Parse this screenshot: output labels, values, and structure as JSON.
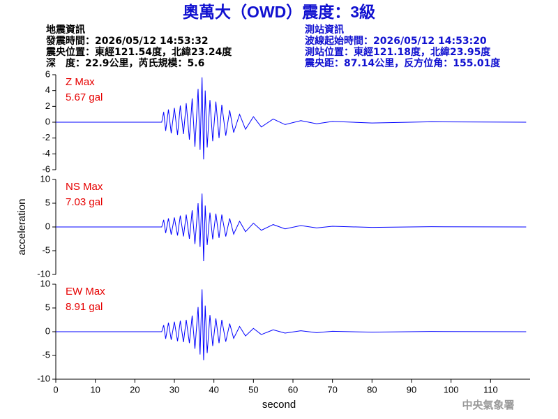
{
  "header": {
    "title": "奧萬大（OWD）震度：3級",
    "left": [
      "地震資訊",
      "發震時間：2026/05/12 14:53:32",
      "震央位置：東經121.54度，北緯23.24度",
      "深　度：22.9公里，芮氏規模：5.6"
    ],
    "right": [
      "測站資訊",
      "波線起始時間：2026/05/12 14:53:20",
      "測站位置：東經121.18度，北緯23.95度",
      "震央距：87.14公里，反方位角：155.01度"
    ]
  },
  "footer": "中央氣象署",
  "chart_data": [
    {
      "type": "line",
      "annotation": [
        "Z Max",
        "5.67 gal"
      ],
      "annotation_color": "#e60000",
      "series": [
        {
          "color": "#0000ff",
          "x": [
            0,
            26.8,
            27.3,
            27.8,
            28.5,
            29.2,
            30,
            30.8,
            31.5,
            32.3,
            33,
            33.8,
            34.5,
            35.2,
            36,
            36.5,
            37,
            37.4,
            37.8,
            38.3,
            39,
            39.7,
            40.5,
            41.3,
            42,
            43,
            44,
            45,
            46.5,
            48,
            50,
            52,
            55,
            58,
            62,
            66,
            70,
            80,
            95,
            119
          ],
          "values": [
            0,
            0,
            1.3,
            -1.1,
            1.6,
            -1.4,
            1.8,
            -1.6,
            2.1,
            -1.5,
            2.4,
            -2.2,
            3.0,
            -3.1,
            4.2,
            -3.5,
            5.67,
            -4.7,
            4.0,
            -3.2,
            2.8,
            -2.4,
            2.6,
            -2.0,
            2.2,
            -1.7,
            1.5,
            -1.3,
            1.0,
            -0.9,
            0.7,
            -0.6,
            0.4,
            -0.3,
            0.2,
            -0.2,
            0.1,
            -0.1,
            0.05,
            0
          ]
        }
      ],
      "xlim": [
        0,
        120
      ],
      "ylim": [
        -6,
        6
      ],
      "yticks": [
        -6,
        -4,
        -2,
        0,
        2,
        4,
        6
      ]
    },
    {
      "type": "line",
      "annotation": [
        "NS Max",
        "7.03 gal"
      ],
      "annotation_color": "#e60000",
      "ylabel": "acceleration",
      "series": [
        {
          "color": "#0000ff",
          "x": [
            0,
            26.8,
            27.3,
            27.8,
            28.5,
            29.2,
            30,
            30.8,
            31.5,
            32.3,
            33,
            33.8,
            34.5,
            35.2,
            36,
            36.5,
            37,
            37.4,
            37.8,
            38.3,
            39,
            39.7,
            40.5,
            41.3,
            42,
            43,
            44,
            45,
            46.5,
            48,
            50,
            52,
            55,
            58,
            62,
            66,
            70,
            80,
            95,
            119
          ],
          "values": [
            0,
            0,
            1.5,
            -1.3,
            1.8,
            -1.6,
            2.0,
            -1.8,
            2.4,
            -2.0,
            2.6,
            -2.5,
            3.5,
            -3.6,
            5.0,
            -4.2,
            7.03,
            -7.2,
            4.5,
            -3.8,
            3.0,
            -2.6,
            2.8,
            -2.3,
            2.6,
            -2.0,
            1.8,
            -1.5,
            1.2,
            -1.0,
            0.8,
            -0.7,
            0.5,
            -0.4,
            0.3,
            -0.2,
            0.15,
            -0.1,
            0.05,
            0
          ]
        }
      ],
      "xlim": [
        0,
        120
      ],
      "ylim": [
        -10,
        10
      ],
      "yticks": [
        -10,
        -5,
        0,
        5,
        10
      ]
    },
    {
      "type": "line",
      "annotation": [
        "EW Max",
        "8.91 gal"
      ],
      "annotation_color": "#e60000",
      "xlabel": "second",
      "series": [
        {
          "color": "#0000ff",
          "x": [
            0,
            26.8,
            27.3,
            27.8,
            28.5,
            29.2,
            30,
            30.8,
            31.5,
            32.3,
            33,
            33.8,
            34.5,
            35.2,
            36,
            36.5,
            37,
            37.4,
            37.8,
            38.3,
            39,
            39.7,
            40.5,
            41.3,
            42,
            43,
            44,
            45,
            46.5,
            48,
            50,
            52,
            55,
            58,
            62,
            66,
            70,
            80,
            95,
            119
          ],
          "values": [
            0,
            0,
            1.4,
            -1.5,
            1.9,
            -1.7,
            2.1,
            -2.0,
            2.3,
            -2.2,
            2.5,
            -2.4,
            3.4,
            -3.6,
            5.2,
            -4.8,
            8.91,
            -6.0,
            5.5,
            -4.5,
            3.5,
            -3.0,
            2.8,
            -2.4,
            2.5,
            -2.1,
            1.7,
            -1.4,
            1.1,
            -0.9,
            0.7,
            -0.6,
            0.4,
            -0.3,
            0.2,
            -0.2,
            0.1,
            -0.1,
            0.05,
            0
          ]
        }
      ],
      "xlim": [
        0,
        120
      ],
      "ylim": [
        -10,
        10
      ],
      "yticks": [
        -10,
        -5,
        0,
        5,
        10
      ],
      "xticks": [
        0,
        10,
        20,
        30,
        40,
        50,
        60,
        70,
        80,
        90,
        100,
        110
      ]
    }
  ]
}
